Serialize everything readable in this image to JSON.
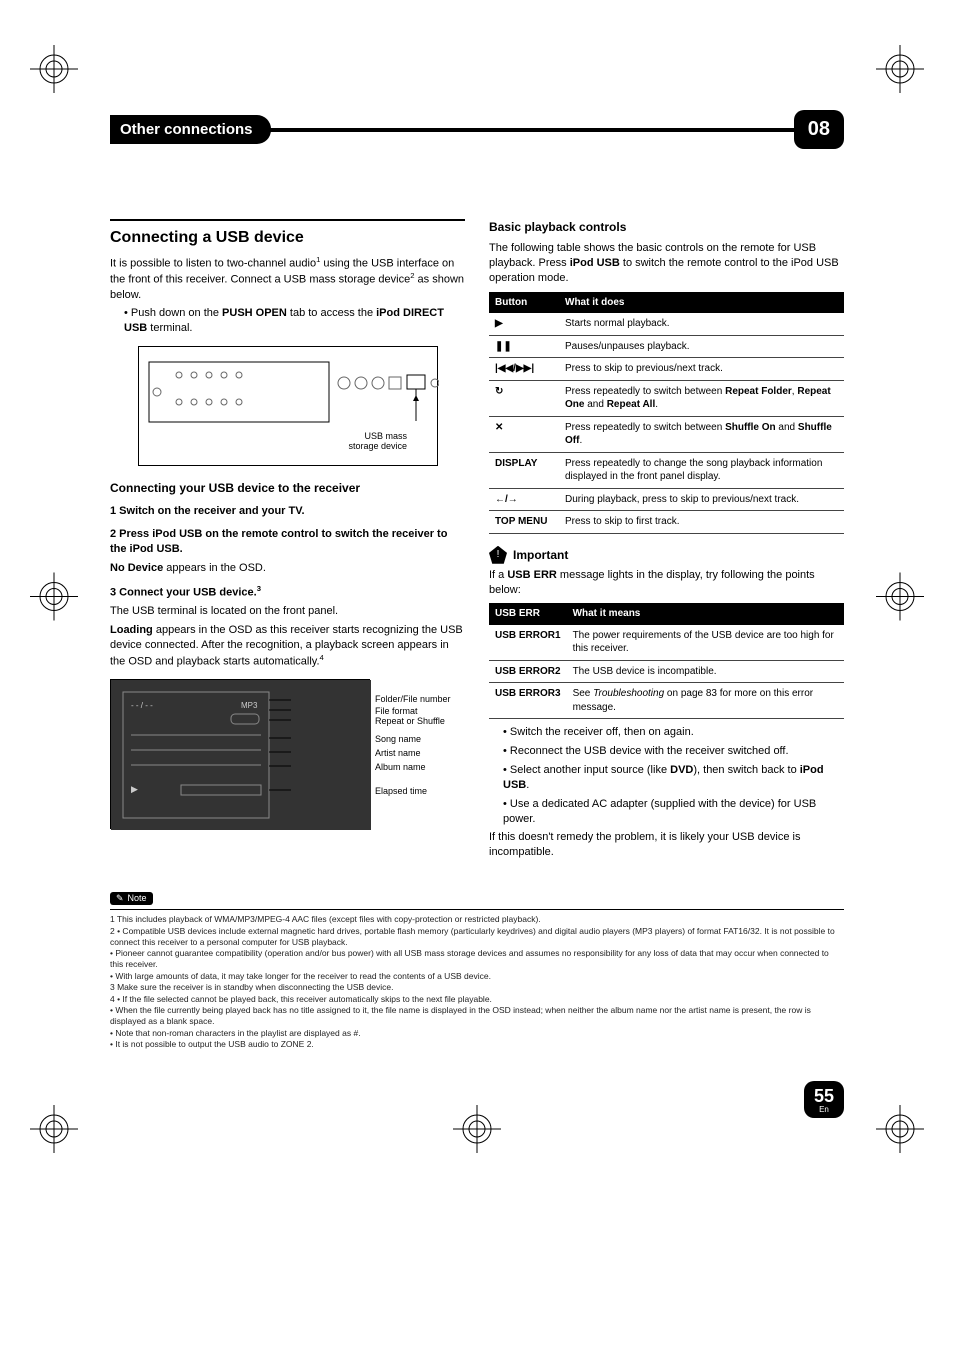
{
  "header": {
    "title": "Other connections",
    "chapter": "08"
  },
  "left": {
    "section_title": "Connecting a USB device",
    "intro_a": "It is possible to listen to two-channel audio",
    "intro_a_sup": "1",
    "intro_a2": " using the USB interface on the front of this receiver. Connect a USB mass storage device",
    "intro_a2_sup": "2",
    "intro_a3": " as shown below.",
    "bullet1_a": "Push down on the ",
    "bullet1_b": "PUSH OPEN",
    "bullet1_c": " tab to access the ",
    "bullet1_d": "iPod DIRECT USB",
    "bullet1_e": " terminal.",
    "fig_label": "USB mass\nstorage device",
    "sub1": "Connecting your USB device to the receiver",
    "step1": "1   Switch on the receiver and your TV.",
    "step2": "2   Press iPod USB on the remote control to switch the receiver to the iPod USB.",
    "step2_after_a": "No Device",
    "step2_after_b": " appears in the OSD.",
    "step3": "3   Connect your USB device.",
    "step3_sup": "3",
    "step3_after": "The USB terminal is located on the front panel.",
    "loading_a": "Loading",
    "loading_b": " appears in the OSD as this receiver starts recognizing the USB device connected. After the recognition, a playback screen appears in the OSD and playback starts automatically.",
    "loading_sup": "4",
    "osd_labels": {
      "l0": "Folder/File number",
      "l1": "File format",
      "l2": "Repeat or Shuffle",
      "l3": "Song name",
      "l4": "Artist name",
      "l5": "Album name",
      "l6": "Elapsed time"
    }
  },
  "right": {
    "sub": "Basic playback controls",
    "intro_a": "The following table shows the basic controls on the remote for USB playback. Press ",
    "intro_b": "iPod USB",
    "intro_c": " to switch the remote control to the iPod USB operation mode.",
    "table1": {
      "h1": "Button",
      "h2": "What it does",
      "rows": [
        {
          "b": "▶",
          "d": "Starts normal playback."
        },
        {
          "b": "❚❚",
          "d": "Pauses/unpauses playback."
        },
        {
          "b": "|◀◀/▶▶|",
          "d": "Press to skip to previous/next track."
        },
        {
          "b": "↻",
          "d_a": "Press repeatedly to switch between ",
          "d_b": "Repeat Folder",
          "d_c": ", ",
          "d_d": "Repeat One",
          "d_e": " and ",
          "d_f": "Repeat All",
          "d_g": "."
        },
        {
          "b": "✕",
          "d_a": "Press repeatedly to switch between ",
          "d_b": "Shuffle On",
          "d_c": " and ",
          "d_d": "Shuffle Off",
          "d_e": "."
        },
        {
          "b": "DISPLAY",
          "d": "Press repeatedly to change the song playback information displayed in the front panel display."
        },
        {
          "b": "←/→",
          "d": "During playback, press to skip to previous/next track."
        },
        {
          "b": "TOP MENU",
          "d": "Press to skip to first track."
        }
      ]
    },
    "important": "Important",
    "imp_text_a": "If a ",
    "imp_text_b": "USB ERR",
    "imp_text_c": " message lights in the display, try following the points below:",
    "table2": {
      "h1": "USB ERR",
      "h2": "What it means",
      "rows": [
        {
          "b": "USB ERROR1",
          "d": "The power requirements of the USB device are too high for this receiver."
        },
        {
          "b": "USB ERROR2",
          "d": "The USB device is incompatible."
        },
        {
          "b": "USB ERROR3",
          "d_a": "See ",
          "d_i": "Troubleshooting",
          "d_b": " on page 83 for more on this error message."
        }
      ]
    },
    "bullets": {
      "b1": "Switch the receiver off, then on again.",
      "b2": "Reconnect the USB device with the receiver switched off.",
      "b3_a": "Select another input source (like ",
      "b3_b": "DVD",
      "b3_c": "), then switch back to ",
      "b3_d": "iPod USB",
      "b3_e": ".",
      "b4": "Use a dedicated AC adapter (supplied with the device) for USB power."
    },
    "closing": "If this doesn't remedy the problem, it is likely your USB device is incompatible."
  },
  "notes": {
    "label": "Note",
    "n1": "1  This includes playback of WMA/MP3/MPEG-4 AAC files (except files with copy-protection or restricted playback).",
    "n2a": "2  • Compatible USB devices include external magnetic hard drives, portable flash memory (particularly keydrives) and digital audio players (MP3 players) of format FAT16/32. It is not possible to connect this receiver to a personal computer for USB playback.",
    "n2b": "• Pioneer cannot guarantee compatibility (operation and/or bus power) with all USB mass storage devices and assumes no responsibility for any loss of data that may occur when connected to this receiver.",
    "n2c": "• With large amounts of data, it may take longer for the receiver to read the contents of a USB device.",
    "n3": "3  Make sure the receiver is in standby when disconnecting the USB device.",
    "n4a": "4  • If the file selected cannot be played back, this receiver automatically skips to the next file playable.",
    "n4b": "• When the file currently being played back has no title assigned to it, the file name is displayed in the OSD instead; when neither the album name nor the artist name is present, the row is displayed as a blank space.",
    "n4c": "• Note that non-roman characters in the playlist are displayed as #.",
    "n4d": "• It is not possible to output the USB audio to ZONE 2."
  },
  "page": {
    "num": "55",
    "lang": "En"
  },
  "colors": {
    "black": "#000000",
    "white": "#ffffff",
    "osd_bg": "#333333"
  },
  "typography": {
    "body_pt": 11,
    "h2_pt": 16,
    "h3_pt": 12,
    "note_pt": 8.5,
    "header_title_pt": 15,
    "badge_pt": 20
  }
}
